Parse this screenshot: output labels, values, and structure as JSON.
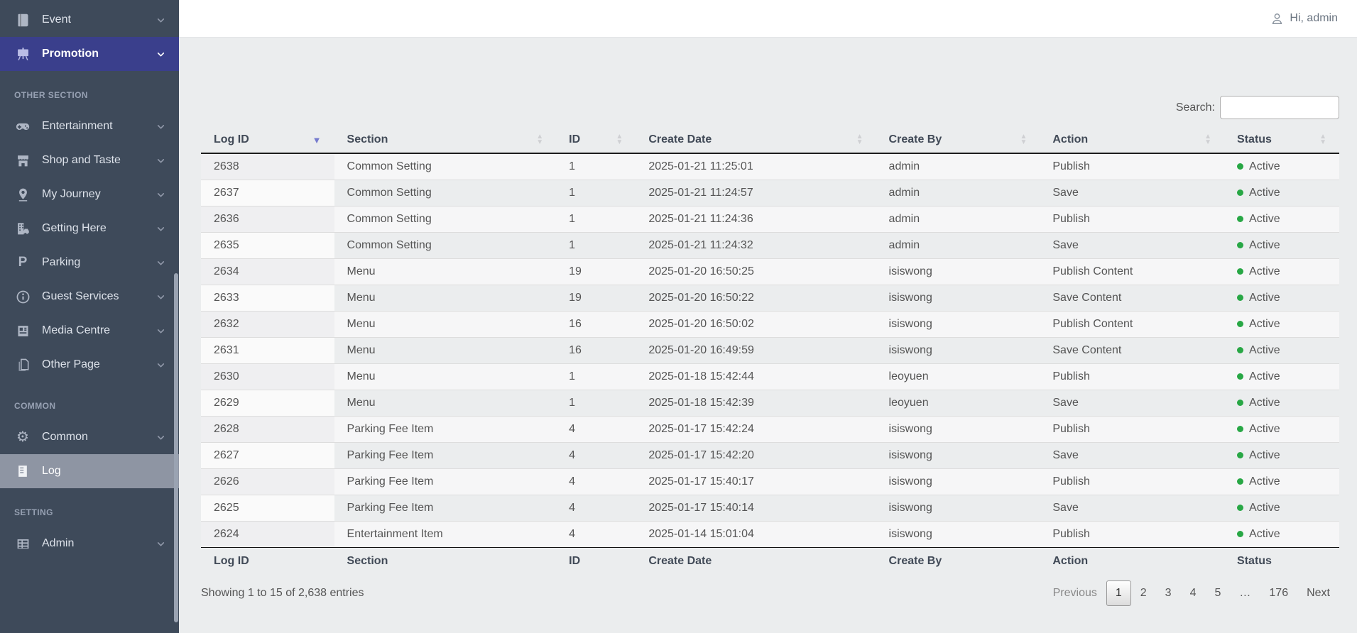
{
  "header": {
    "greeting": "Hi, admin"
  },
  "sidebar": {
    "groups": [
      {
        "header": "",
        "items": [
          {
            "label": "Event",
            "icon": "book-icon",
            "chevron": true,
            "state": "normal"
          },
          {
            "label": "Promotion",
            "icon": "easel-icon",
            "chevron": true,
            "state": "active"
          }
        ]
      },
      {
        "header": "OTHER SECTION",
        "items": [
          {
            "label": "Entertainment",
            "icon": "gamepad-icon",
            "chevron": true,
            "state": "normal"
          },
          {
            "label": "Shop and Taste",
            "icon": "shop-icon",
            "chevron": true,
            "state": "normal"
          },
          {
            "label": "My Journey",
            "icon": "map-pin-icon",
            "chevron": true,
            "state": "normal"
          },
          {
            "label": "Getting Here",
            "icon": "transport-icon",
            "chevron": true,
            "state": "normal"
          },
          {
            "label": "Parking",
            "icon": "parking-icon",
            "chevron": true,
            "state": "normal"
          },
          {
            "label": "Guest Services",
            "icon": "info-icon",
            "chevron": true,
            "state": "normal"
          },
          {
            "label": "Media Centre",
            "icon": "news-icon",
            "chevron": true,
            "state": "normal"
          },
          {
            "label": "Other Page",
            "icon": "pages-icon",
            "chevron": true,
            "state": "normal"
          }
        ]
      },
      {
        "header": "COMMON",
        "items": [
          {
            "label": "Common",
            "icon": "gear-icon",
            "chevron": true,
            "state": "normal"
          },
          {
            "label": "Log",
            "icon": "log-icon",
            "chevron": false,
            "state": "selected"
          }
        ]
      },
      {
        "header": "SETTING",
        "items": [
          {
            "label": "Admin",
            "icon": "table-icon",
            "chevron": true,
            "state": "normal"
          }
        ]
      }
    ]
  },
  "search": {
    "label": "Search:",
    "value": ""
  },
  "table": {
    "columns": [
      {
        "label": "Log ID",
        "sort": "desc"
      },
      {
        "label": "Section",
        "sort": "both"
      },
      {
        "label": "ID",
        "sort": "both"
      },
      {
        "label": "Create Date",
        "sort": "both"
      },
      {
        "label": "Create By",
        "sort": "both"
      },
      {
        "label": "Action",
        "sort": "both"
      },
      {
        "label": "Status",
        "sort": "both"
      }
    ],
    "rows": [
      [
        "2638",
        "Common Setting",
        "1",
        "2025-01-21 11:25:01",
        "admin",
        "Publish",
        "Active"
      ],
      [
        "2637",
        "Common Setting",
        "1",
        "2025-01-21 11:24:57",
        "admin",
        "Save",
        "Active"
      ],
      [
        "2636",
        "Common Setting",
        "1",
        "2025-01-21 11:24:36",
        "admin",
        "Publish",
        "Active"
      ],
      [
        "2635",
        "Common Setting",
        "1",
        "2025-01-21 11:24:32",
        "admin",
        "Save",
        "Active"
      ],
      [
        "2634",
        "Menu",
        "19",
        "2025-01-20 16:50:25",
        "isiswong",
        "Publish Content",
        "Active"
      ],
      [
        "2633",
        "Menu",
        "19",
        "2025-01-20 16:50:22",
        "isiswong",
        "Save Content",
        "Active"
      ],
      [
        "2632",
        "Menu",
        "16",
        "2025-01-20 16:50:02",
        "isiswong",
        "Publish Content",
        "Active"
      ],
      [
        "2631",
        "Menu",
        "16",
        "2025-01-20 16:49:59",
        "isiswong",
        "Save Content",
        "Active"
      ],
      [
        "2630",
        "Menu",
        "1",
        "2025-01-18 15:42:44",
        "leoyuen",
        "Publish",
        "Active"
      ],
      [
        "2629",
        "Menu",
        "1",
        "2025-01-18 15:42:39",
        "leoyuen",
        "Save",
        "Active"
      ],
      [
        "2628",
        "Parking Fee Item",
        "4",
        "2025-01-17 15:42:24",
        "isiswong",
        "Publish",
        "Active"
      ],
      [
        "2627",
        "Parking Fee Item",
        "4",
        "2025-01-17 15:42:20",
        "isiswong",
        "Save",
        "Active"
      ],
      [
        "2626",
        "Parking Fee Item",
        "4",
        "2025-01-17 15:40:17",
        "isiswong",
        "Publish",
        "Active"
      ],
      [
        "2625",
        "Parking Fee Item",
        "4",
        "2025-01-17 15:40:14",
        "isiswong",
        "Save",
        "Active"
      ],
      [
        "2624",
        "Entertainment Item",
        "4",
        "2025-01-14 15:01:04",
        "isiswong",
        "Publish",
        "Active"
      ]
    ],
    "footer_columns": [
      "Log ID",
      "Section",
      "ID",
      "Create Date",
      "Create By",
      "Action",
      "Status"
    ]
  },
  "footer": {
    "info": "Showing 1 to 15 of 2,638 entries"
  },
  "pagination": {
    "previous": "Previous",
    "pages": [
      "1",
      "2",
      "3",
      "4",
      "5",
      "…",
      "176"
    ],
    "current": "1",
    "next": "Next"
  },
  "colors": {
    "sidebar_bg": "#3e4a5a",
    "active_item_bg": "#3a3f8c",
    "selected_item_bg": "#8e95a3",
    "status_active": "#28a745",
    "sort_active_arrow": "#767bce",
    "page_bg": "#ebedee"
  }
}
